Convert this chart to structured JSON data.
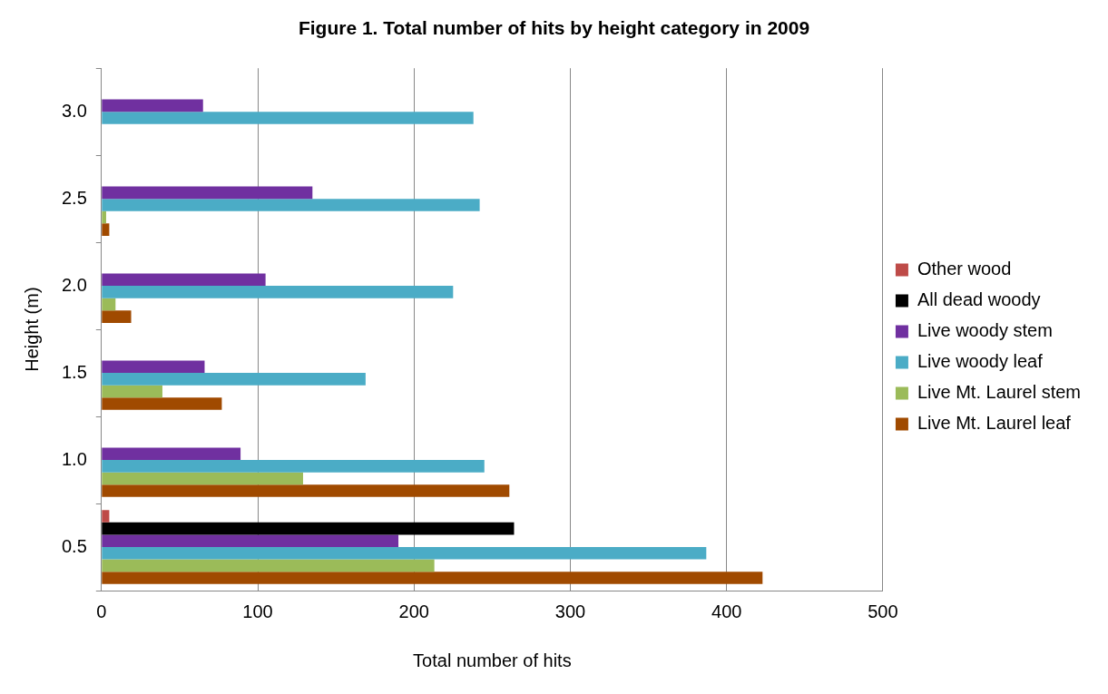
{
  "chart_data": {
    "type": "bar",
    "orientation": "horizontal",
    "title": "Figure 1. Total number of hits by height category in 2009",
    "xlabel": "Total number of hits",
    "ylabel": "Height (m)",
    "categories": [
      "3.0",
      "2.5",
      "2.0",
      "1.5",
      "1.0",
      "0.5"
    ],
    "series": [
      {
        "name": "Other wood",
        "color": "#be4b48",
        "values": [
          0,
          0,
          0,
          0,
          0,
          5
        ]
      },
      {
        "name": "All dead woody",
        "color": "#000000",
        "values": [
          0,
          0,
          0,
          0,
          0,
          264
        ]
      },
      {
        "name": "Live woody stem",
        "color": "#7030a0",
        "values": [
          65,
          135,
          105,
          66,
          89,
          190
        ]
      },
      {
        "name": "Live woody leaf",
        "color": "#4bacc6",
        "values": [
          238,
          242,
          225,
          169,
          245,
          387
        ]
      },
      {
        "name": "Live Mt. Laurel stem",
        "color": "#9bbb59",
        "values": [
          0,
          3,
          9,
          39,
          129,
          213
        ]
      },
      {
        "name": "Live Mt. Laurel leaf",
        "color": "#a04a00",
        "values": [
          0,
          5,
          19,
          77,
          261,
          423
        ]
      }
    ],
    "xlim": [
      0,
      500
    ],
    "xticks": [
      0,
      100,
      200,
      300,
      400,
      500
    ],
    "grid": "x",
    "legend": "right"
  }
}
